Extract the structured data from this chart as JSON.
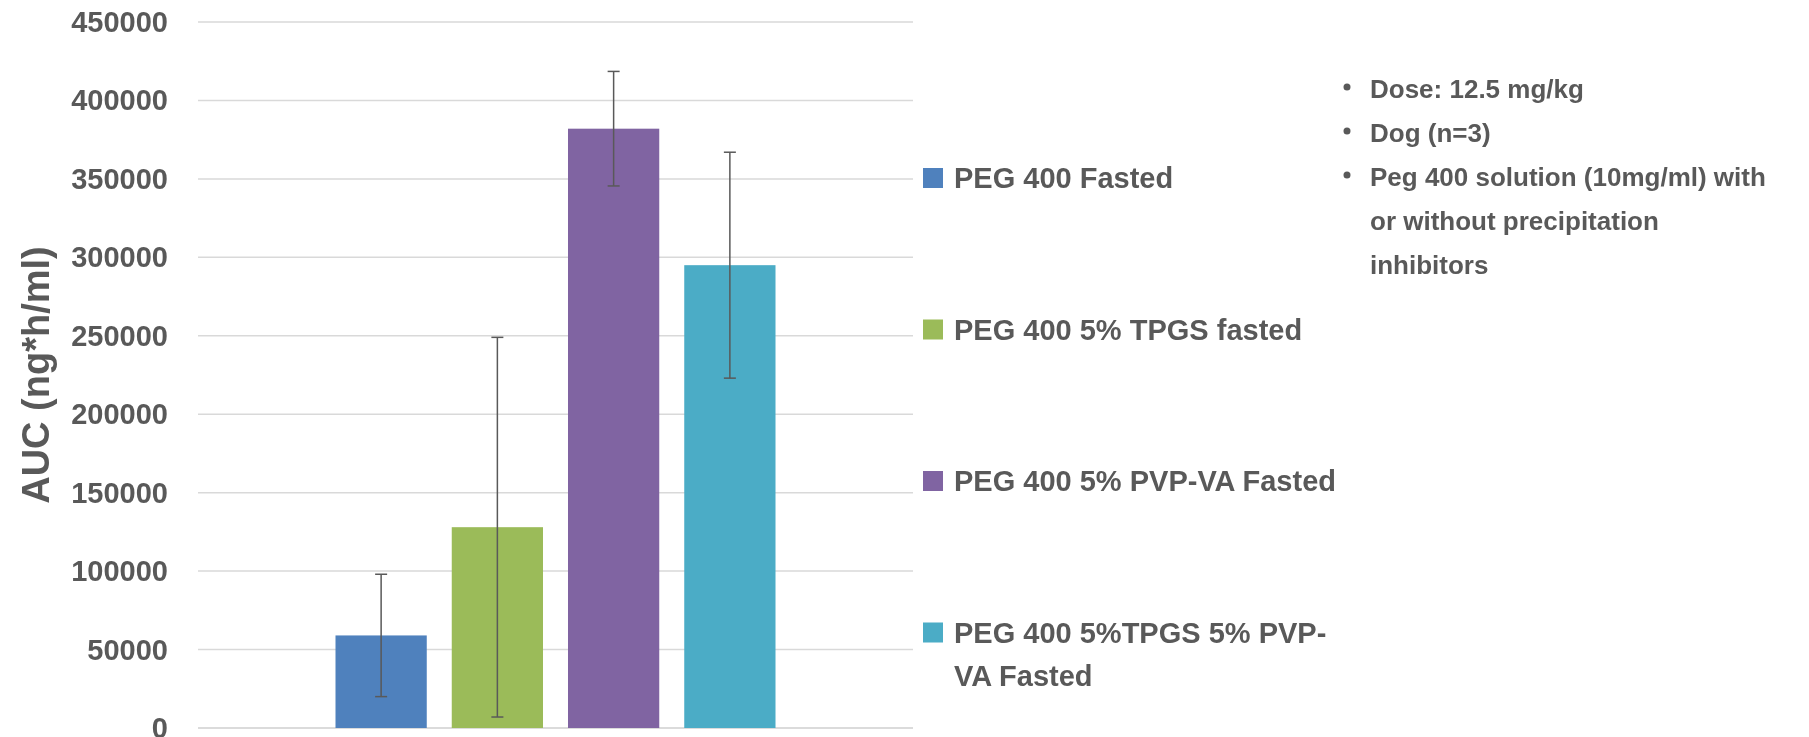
{
  "chart_data": {
    "type": "bar",
    "ylabel": "AUC (ng*h/ml)",
    "categories": [
      null
    ],
    "series": [
      {
        "name": "PEG 400 Fasted",
        "color": "#4f81bd",
        "values": [
          59000
        ],
        "errors": [
          39000
        ]
      },
      {
        "name": "PEG 400 5% TPGS fasted",
        "color": "#9bbb59",
        "values": [
          128000
        ],
        "errors": [
          121000
        ]
      },
      {
        "name": "PEG 400 5% PVP-VA Fasted",
        "color": "#8064a2",
        "values": [
          382000
        ],
        "errors": [
          36500
        ]
      },
      {
        "name": "PEG 400 5%TPGS 5% PVP-VA Fasted",
        "color": "#4bacc6",
        "values": [
          295000
        ],
        "errors": [
          72000
        ]
      }
    ],
    "ylim": [
      0,
      450000
    ],
    "yticks": [
      0,
      50000,
      100000,
      150000,
      200000,
      250000,
      300000,
      350000,
      400000,
      450000
    ],
    "grid": "y",
    "legend": "right",
    "annotations": [
      "Dose: 12.5 mg/kg",
      "Dog (n=3)",
      "Peg 400 solution (10mg/ml) with or without precipitation inhibitors"
    ]
  }
}
